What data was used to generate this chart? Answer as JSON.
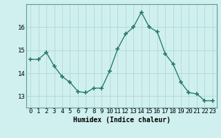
{
  "x": [
    0,
    1,
    2,
    3,
    4,
    5,
    6,
    7,
    8,
    9,
    10,
    11,
    12,
    13,
    14,
    15,
    16,
    17,
    18,
    19,
    20,
    21,
    22,
    23
  ],
  "y": [
    14.6,
    14.6,
    14.9,
    14.3,
    13.85,
    13.6,
    13.2,
    13.15,
    13.35,
    13.35,
    14.1,
    15.05,
    15.7,
    16.0,
    16.65,
    16.0,
    15.8,
    14.85,
    14.4,
    13.6,
    13.15,
    13.1,
    12.8,
    12.8
  ],
  "line_color": "#2a7a6a",
  "marker": "+",
  "marker_size": 4,
  "marker_lw": 1.2,
  "line_width": 1.0,
  "bg_color": "#cff0ee",
  "grid_color": "#b0d8d4",
  "xlabel": "Humidex (Indice chaleur)",
  "xlabel_fontsize": 7,
  "tick_fontsize": 6.5,
  "ylim": [
    12.5,
    17.0
  ],
  "xlim": [
    -0.5,
    23.5
  ],
  "yticks": [
    13,
    14,
    15,
    16
  ],
  "xtick_labels": [
    "0",
    "1",
    "2",
    "3",
    "4",
    "5",
    "6",
    "7",
    "8",
    "9",
    "10",
    "11",
    "12",
    "13",
    "14",
    "15",
    "16",
    "17",
    "18",
    "19",
    "20",
    "21",
    "22",
    "23"
  ]
}
